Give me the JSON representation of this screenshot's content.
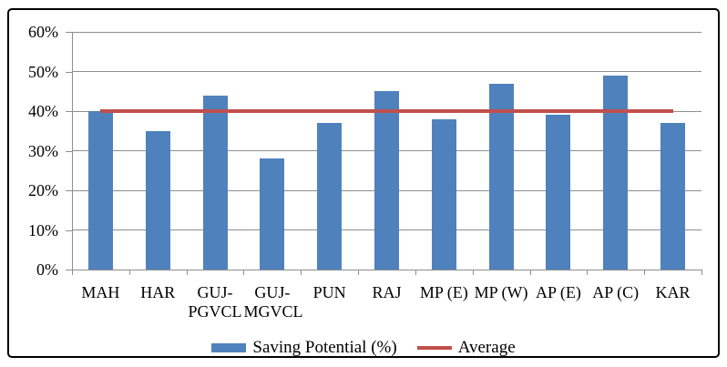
{
  "chart_data": {
    "type": "bar",
    "title": "",
    "categories": [
      "MAH",
      "HAR",
      "GUJ-\nPGVCL",
      "GUJ-\nMGVCL",
      "PUN",
      "RAJ",
      "MP (E)",
      "MP (W)",
      "AP (E)",
      "AP (C)",
      "KAR"
    ],
    "series": [
      {
        "name": "Saving Potential (%)",
        "type": "bar",
        "color": "#4F81BD",
        "values": [
          40,
          35,
          44,
          28,
          37,
          45,
          38,
          47,
          39,
          49,
          37
        ]
      },
      {
        "name": "Average",
        "type": "line",
        "color": "#C0504D",
        "value": 40
      }
    ],
    "xlabel": "",
    "ylabel": "",
    "ylim": [
      0,
      60
    ],
    "yticks": [
      0,
      10,
      20,
      30,
      40,
      50,
      60
    ],
    "ytick_labels": [
      "0%",
      "10%",
      "20%",
      "30%",
      "40%",
      "50%",
      "60%"
    ],
    "grid": true,
    "legend_position": "bottom"
  },
  "colors": {
    "bar": "#4F81BD",
    "average_line": "#C0504D",
    "gridline": "#8E8E8E",
    "frame_border": "#000000",
    "background": "#FFFFFF",
    "text": "#000000"
  }
}
